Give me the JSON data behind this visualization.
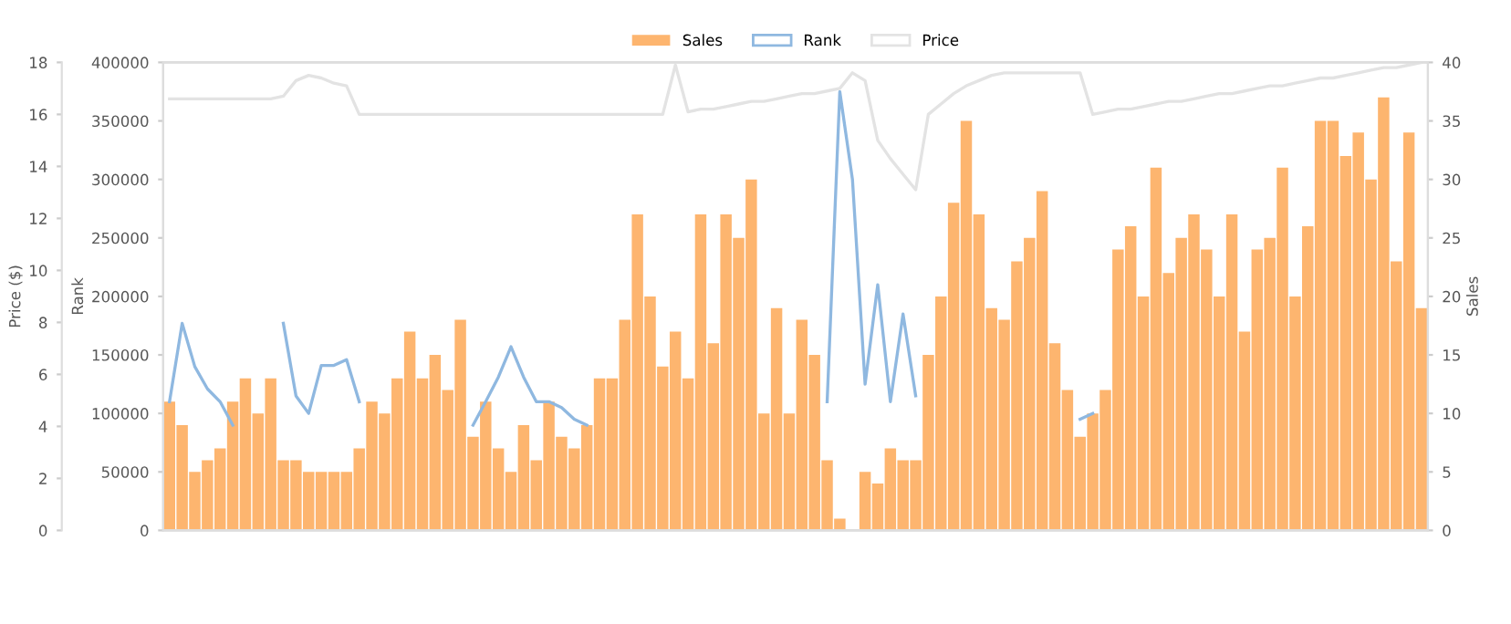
{
  "chart_data": {
    "type": "bar",
    "ylabel": "Rank",
    "y2label": "Sales",
    "y3label": "Price ($)",
    "categories": [
      null,
      null,
      null,
      null,
      null,
      null,
      null,
      null,
      null,
      null,
      null,
      null,
      null,
      null,
      null,
      null,
      null,
      null,
      null,
      null,
      null,
      null,
      null,
      null,
      null,
      null,
      null,
      null,
      null,
      null,
      null,
      null,
      null,
      null,
      null,
      null,
      null,
      null,
      null,
      null,
      null,
      null,
      null,
      null,
      null,
      null,
      null,
      null,
      null,
      null,
      null,
      null,
      null,
      null,
      null,
      null,
      null,
      null,
      null,
      null,
      null,
      null,
      null,
      null,
      null,
      null,
      null,
      null,
      null,
      null,
      null,
      null,
      null,
      null,
      null,
      null,
      null,
      null,
      null,
      null,
      null,
      null,
      null,
      null,
      null,
      null,
      null,
      null,
      null,
      null,
      null,
      null,
      null,
      null,
      null,
      null,
      null,
      null,
      null,
      null
    ],
    "ylim": [
      0,
      400000
    ],
    "yticks": [
      0,
      50000,
      100000,
      150000,
      200000,
      250000,
      300000,
      350000,
      400000
    ],
    "y2lim": [
      0,
      40
    ],
    "y2ticks": [
      0,
      5,
      10,
      15,
      20,
      25,
      30,
      35,
      40
    ],
    "y3lim": [
      0,
      18
    ],
    "y3ticks": [
      0,
      2,
      4,
      6,
      8,
      10,
      12,
      14,
      16,
      18
    ],
    "legend": "top",
    "grid": false,
    "series": [
      {
        "name": "Sales",
        "axis": "y2",
        "color": "#fdb56f",
        "values": [
          11,
          9,
          5,
          6,
          7,
          11,
          13,
          10,
          13,
          6,
          6,
          5,
          5,
          5,
          5,
          7,
          11,
          10,
          13,
          17,
          13,
          15,
          12,
          18,
          8,
          11,
          7,
          5,
          9,
          6,
          11,
          8,
          7,
          9,
          13,
          13,
          18,
          27,
          20,
          14,
          17,
          13,
          27,
          16,
          27,
          25,
          30,
          10,
          19,
          10,
          18,
          15,
          6,
          1,
          0,
          5,
          4,
          7,
          6,
          6,
          15,
          20,
          28,
          35,
          27,
          19,
          18,
          23,
          25,
          29,
          16,
          12,
          8,
          10,
          12,
          24,
          26,
          20,
          31,
          22,
          25,
          27,
          24,
          20,
          27,
          17,
          24,
          25,
          31,
          20,
          26,
          35,
          35,
          32,
          34,
          30,
          37,
          23,
          34,
          19
        ]
      },
      {
        "name": "Rank",
        "type": "line",
        "axis": "y",
        "color": "#8fb8e0",
        "values": [
          110000,
          177000,
          140000,
          121000,
          110000,
          90000,
          null,
          null,
          null,
          177000,
          115000,
          100000,
          141000,
          141000,
          146000,
          110000,
          null,
          null,
          null,
          null,
          null,
          null,
          null,
          null,
          90000,
          110000,
          131000,
          157000,
          131000,
          110000,
          110000,
          105000,
          95000,
          90000,
          null,
          null,
          null,
          null,
          null,
          null,
          null,
          null,
          null,
          null,
          null,
          null,
          null,
          null,
          null,
          null,
          null,
          null,
          110000,
          375000,
          300000,
          125000,
          210000,
          110000,
          185000,
          115000,
          null,
          null,
          null,
          null,
          null,
          null,
          null,
          null,
          null,
          null,
          null,
          null,
          95000,
          100000,
          null,
          null,
          null,
          null,
          null,
          null,
          null,
          null,
          null,
          null,
          null,
          null,
          null,
          null,
          null,
          null,
          null,
          null,
          null,
          null,
          null,
          null,
          null,
          null,
          null,
          null
        ]
      },
      {
        "name": "Price",
        "type": "line",
        "axis": "y3",
        "color": "#e3e3e3",
        "values": [
          16.6,
          16.6,
          16.6,
          16.6,
          16.6,
          16.6,
          16.6,
          16.6,
          16.6,
          16.7,
          17.3,
          17.5,
          17.4,
          17.2,
          17.1,
          16.0,
          16.0,
          16.0,
          16.0,
          16.0,
          16.0,
          16.0,
          16.0,
          16.0,
          16.0,
          16.0,
          16.0,
          16.0,
          16.0,
          16.0,
          16.0,
          16.0,
          16.0,
          16.0,
          16.0,
          16.0,
          16.0,
          16.0,
          16.0,
          16.0,
          17.9,
          16.1,
          16.2,
          16.2,
          16.3,
          16.4,
          16.5,
          16.5,
          16.6,
          16.7,
          16.8,
          16.8,
          16.9,
          17.0,
          17.6,
          17.3,
          15.0,
          14.3,
          13.7,
          13.1,
          16.0,
          16.4,
          16.8,
          17.1,
          17.3,
          17.5,
          17.6,
          17.6,
          17.6,
          17.6,
          17.6,
          17.6,
          17.6,
          16.0,
          16.1,
          16.2,
          16.2,
          16.3,
          16.4,
          16.5,
          16.5,
          16.6,
          16.7,
          16.8,
          16.8,
          16.9,
          17.0,
          17.1,
          17.1,
          17.2,
          17.3,
          17.4,
          17.4,
          17.5,
          17.6,
          17.7,
          17.8,
          17.8,
          17.9,
          18.0
        ]
      }
    ]
  }
}
